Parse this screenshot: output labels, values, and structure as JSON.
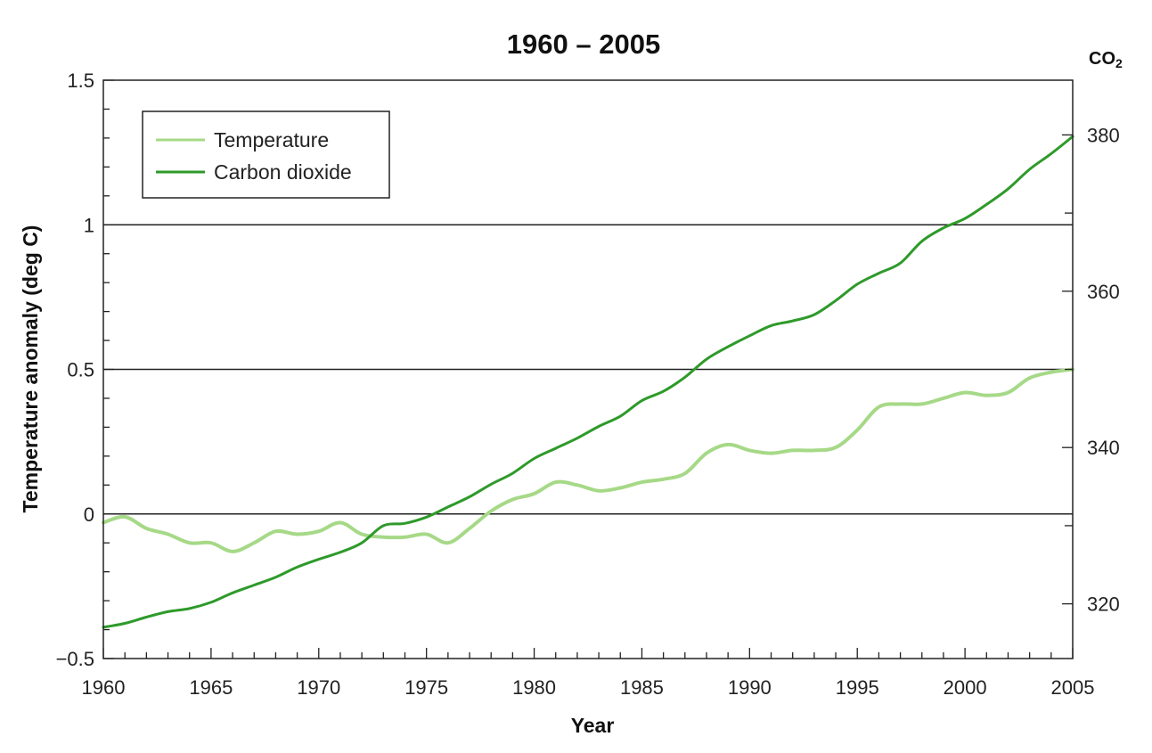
{
  "chart_data": {
    "type": "line",
    "title": "1960 – 2005",
    "xlabel": "Year",
    "ylabel": "Temperature anomaly (deg C)",
    "y2label": {
      "main": "CO",
      "sub": "2"
    },
    "xlim": [
      1960,
      2005
    ],
    "ylim": [
      -0.5,
      1.5
    ],
    "y2lim": [
      313,
      387
    ],
    "x_ticks": [
      1960,
      1965,
      1970,
      1975,
      1980,
      1985,
      1990,
      1995,
      2000,
      2005
    ],
    "y_ticks": [
      {
        "value": -0.5,
        "label": "−0.5"
      },
      {
        "value": 0,
        "label": "0"
      },
      {
        "value": 0.5,
        "label": "0.5"
      },
      {
        "value": 1,
        "label": "1"
      },
      {
        "value": 1.5,
        "label": "1.5"
      }
    ],
    "y2_ticks": [
      {
        "value": 320,
        "label": "320"
      },
      {
        "value": 340,
        "label": "340"
      },
      {
        "value": 360,
        "label": "360"
      },
      {
        "value": 380,
        "label": "380"
      }
    ],
    "gridlines_y": [
      0,
      0.5,
      1
    ],
    "legend_position": "top-left",
    "series": [
      {
        "name": "Temperature",
        "axis": "left",
        "color": "#a6d987",
        "x": [
          1960,
          1961,
          1962,
          1963,
          1964,
          1965,
          1966,
          1967,
          1968,
          1969,
          1970,
          1971,
          1972,
          1973,
          1974,
          1975,
          1976,
          1977,
          1978,
          1979,
          1980,
          1981,
          1982,
          1983,
          1984,
          1985,
          1986,
          1987,
          1988,
          1989,
          1990,
          1991,
          1992,
          1993,
          1994,
          1995,
          1996,
          1997,
          1998,
          1999,
          2000,
          2001,
          2002,
          2003,
          2004,
          2005
        ],
        "y": [
          -0.03,
          -0.01,
          -0.05,
          -0.07,
          -0.1,
          -0.1,
          -0.13,
          -0.1,
          -0.06,
          -0.07,
          -0.06,
          -0.03,
          -0.07,
          -0.08,
          -0.08,
          -0.07,
          -0.1,
          -0.05,
          0.01,
          0.05,
          0.07,
          0.11,
          0.1,
          0.08,
          0.09,
          0.11,
          0.12,
          0.14,
          0.21,
          0.24,
          0.22,
          0.21,
          0.22,
          0.22,
          0.23,
          0.29,
          0.37,
          0.38,
          0.38,
          0.4,
          0.42,
          0.41,
          0.42,
          0.47,
          0.49,
          0.5
        ]
      },
      {
        "name": "Carbon dioxide",
        "axis": "right",
        "color": "#2e9a2a",
        "x": [
          1960,
          1961,
          1962,
          1963,
          1964,
          1965,
          1966,
          1967,
          1968,
          1969,
          1970,
          1971,
          1972,
          1973,
          1974,
          1975,
          1976,
          1977,
          1978,
          1979,
          1980,
          1981,
          1982,
          1983,
          1984,
          1985,
          1986,
          1987,
          1988,
          1989,
          1990,
          1991,
          1992,
          1993,
          1994,
          1995,
          1996,
          1997,
          1998,
          1999,
          2000,
          2001,
          2002,
          2003,
          2004,
          2005
        ],
        "y": [
          317,
          317.5,
          318.3,
          319,
          319.4,
          320.2,
          321.4,
          322.4,
          323.4,
          324.7,
          325.7,
          326.6,
          327.8,
          330,
          330.3,
          331.1,
          332.4,
          333.7,
          335.3,
          336.7,
          338.6,
          339.9,
          341.2,
          342.7,
          344,
          346,
          347.2,
          349,
          351.3,
          352.9,
          354.3,
          355.6,
          356.2,
          357,
          358.8,
          360.9,
          362.3,
          363.6,
          366.4,
          368.1,
          369.3,
          371.1,
          373.1,
          375.6,
          377.6,
          379.8
        ]
      }
    ]
  }
}
